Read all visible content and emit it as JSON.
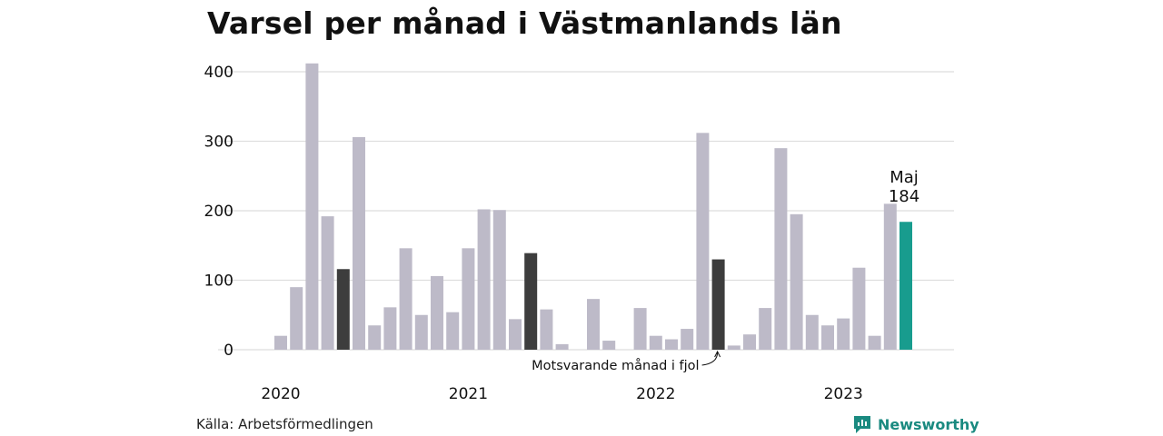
{
  "title": "Varsel per månad i Västmanlands län",
  "source": "Källa: Arbetsförmedlingen",
  "brand": "Newsworthy",
  "chart_data": {
    "type": "bar",
    "title": "Varsel per månad i Västmanlands län",
    "xlabel": "",
    "ylabel": "",
    "ylim": [
      0,
      420
    ],
    "yticks": [
      "0",
      "100",
      "200",
      "300",
      "400"
    ],
    "year_labels": [
      "2020",
      "2021",
      "2022",
      "2023"
    ],
    "categories": [
      "2020-01",
      "2020-02",
      "2020-03",
      "2020-04",
      "2020-05",
      "2020-06",
      "2020-07",
      "2020-08",
      "2020-09",
      "2020-10",
      "2020-11",
      "2020-12",
      "2021-01",
      "2021-02",
      "2021-03",
      "2021-04",
      "2021-05",
      "2021-06",
      "2021-07",
      "2021-08",
      "2021-09",
      "2021-10",
      "2021-11",
      "2021-12",
      "2022-01",
      "2022-02",
      "2022-03",
      "2022-04",
      "2022-05",
      "2022-06",
      "2022-07",
      "2022-08",
      "2022-09",
      "2022-10",
      "2022-11",
      "2022-12",
      "2023-01",
      "2023-02",
      "2023-03",
      "2023-04",
      "2023-05"
    ],
    "values": [
      20,
      90,
      412,
      192,
      116,
      306,
      35,
      61,
      146,
      50,
      106,
      54,
      146,
      202,
      201,
      44,
      139,
      58,
      8,
      0,
      73,
      13,
      0,
      60,
      20,
      15,
      30,
      312,
      130,
      6,
      22,
      60,
      290,
      195,
      50,
      35,
      45,
      118,
      20,
      210,
      184
    ],
    "highlight_same_month": [
      "2020-05",
      "2021-05",
      "2022-05"
    ],
    "current": {
      "label": "Maj",
      "value_label": "184"
    },
    "annotation": "Motsvarande månad i fjol",
    "grid": true,
    "colors": {
      "default": "#bdbac8",
      "same_month": "#3d3d3d",
      "current": "#189c8e",
      "grid": "#dedede"
    }
  }
}
